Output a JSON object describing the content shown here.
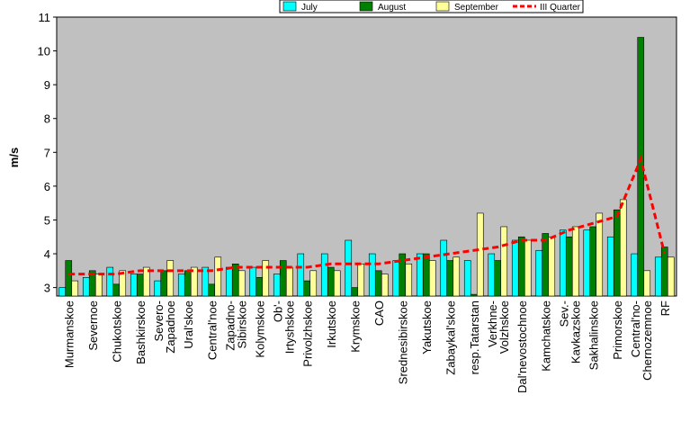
{
  "chart_data": {
    "type": "bar",
    "y_label": "m/s",
    "categories": [
      [
        "Murmanskoe"
      ],
      [
        "Severnoe"
      ],
      [
        "Chukotskoe"
      ],
      [
        "Bashkirskoe"
      ],
      [
        "Severo-",
        "Zapadnoe"
      ],
      [
        "Ural'skoe"
      ],
      [
        "Central'noe"
      ],
      [
        "Zapadno-",
        "Sibirskoe"
      ],
      [
        "Kolymskoe"
      ],
      [
        "Ob'-",
        "Irtyshskoe"
      ],
      [
        "Privolzhskoe"
      ],
      [
        "Irkutskoe"
      ],
      [
        "Krymskoe"
      ],
      [
        "CAO"
      ],
      [
        "Srednesibirskoe"
      ],
      [
        "Yakutskoe"
      ],
      [
        "Zabaykal'skoe"
      ],
      [
        "resp.Tatarstan"
      ],
      [
        "Verkhne-",
        "Volzhskoe"
      ],
      [
        "Dal'nevostochnoe"
      ],
      [
        "Kamchatskoe"
      ],
      [
        "Sev.-",
        "Kavkazskoe"
      ],
      [
        "Sakhalinskoe"
      ],
      [
        "Primorskoe"
      ],
      [
        "Central'no-",
        "Chernozemnoe"
      ],
      [
        "RF"
      ]
    ],
    "series": [
      {
        "name": "July",
        "color": "#00ffff",
        "values": [
          3.0,
          3.3,
          3.6,
          3.4,
          3.2,
          3.4,
          3.6,
          3.6,
          3.6,
          3.4,
          4.0,
          4.0,
          4.4,
          4.0,
          3.8,
          4.0,
          4.4,
          3.8,
          4.0,
          4.4,
          4.1,
          4.7,
          4.7,
          4.5,
          4.0,
          3.9
        ]
      },
      {
        "name": "August",
        "color": "#008000",
        "values": [
          3.8,
          3.5,
          3.1,
          3.4,
          3.5,
          3.5,
          3.1,
          3.7,
          3.3,
          3.8,
          3.2,
          3.6,
          3.0,
          3.5,
          4.0,
          4.0,
          3.8,
          2.8,
          3.8,
          4.5,
          4.6,
          4.5,
          4.8,
          5.3,
          10.4,
          4.2
        ]
      },
      {
        "name": "September",
        "color": "#ffff99",
        "values": [
          3.2,
          3.4,
          3.5,
          3.6,
          3.8,
          3.6,
          3.9,
          3.5,
          3.8,
          3.6,
          3.5,
          3.5,
          3.7,
          3.4,
          3.7,
          3.8,
          3.9,
          5.2,
          4.8,
          4.4,
          4.5,
          4.8,
          5.2,
          5.6,
          3.5,
          3.9
        ]
      },
      {
        "name": "III Quarter",
        "color": "#ff0000",
        "type": "line",
        "values": [
          3.4,
          3.4,
          3.4,
          3.5,
          3.5,
          3.5,
          3.5,
          3.6,
          3.6,
          3.6,
          3.6,
          3.7,
          3.7,
          3.7,
          3.8,
          3.9,
          4.0,
          4.1,
          4.2,
          4.4,
          4.4,
          4.7,
          4.9,
          5.1,
          6.8,
          4.0
        ]
      }
    ],
    "ylim": [
      2.75,
      11
    ],
    "yticks": [
      3,
      4,
      5,
      6,
      7,
      8,
      9,
      10,
      11
    ],
    "legend": "top"
  }
}
